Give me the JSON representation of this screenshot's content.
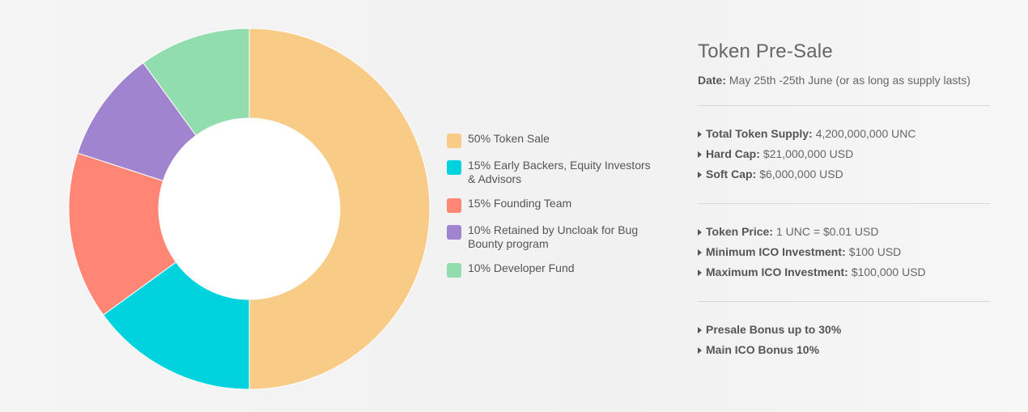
{
  "chart_data": {
    "type": "pie",
    "segments": [
      {
        "label": "50% Token Sale",
        "value": 50,
        "color": "#f8cb86"
      },
      {
        "label": "15% Early Backers, Equity Investors & Advisors",
        "value": 15,
        "color": "#00d2de"
      },
      {
        "label": "15% Founding Team",
        "value": 15,
        "color": "#ff8575"
      },
      {
        "label": "10% Retained by Uncloak for Bug Bounty program",
        "value": 10,
        "color": "#a184cf"
      },
      {
        "label": "10% Developer Fund",
        "value": 10,
        "color": "#92ddae"
      }
    ],
    "legend_position": "right"
  },
  "info": {
    "title": "Token Pre-Sale",
    "date_label": "Date:",
    "date_value": "May 25th -25th June (or as long as supply lasts)",
    "groups": [
      [
        {
          "label": "Total Token Supply:",
          "value": "4,200,000,000 UNC"
        },
        {
          "label": "Hard Cap:",
          "value": "$21,000,000 USD"
        },
        {
          "label": "Soft Cap:",
          "value": "$6,000,000 USD"
        }
      ],
      [
        {
          "label": "Token Price:",
          "value": "1 UNC = $0.01 USD"
        },
        {
          "label": "Minimum ICO Investment:",
          "value": "$100 USD"
        },
        {
          "label": "Maximum ICO Investment:",
          "value": "$100,000 USD"
        }
      ],
      [
        {
          "label": "Presale Bonus up to 30%",
          "value": ""
        },
        {
          "label": "Main ICO Bonus 10%",
          "value": ""
        }
      ]
    ]
  },
  "colors": {
    "background": "#f3f3f3",
    "text": "#666666",
    "divider": "#d8d8d8"
  }
}
